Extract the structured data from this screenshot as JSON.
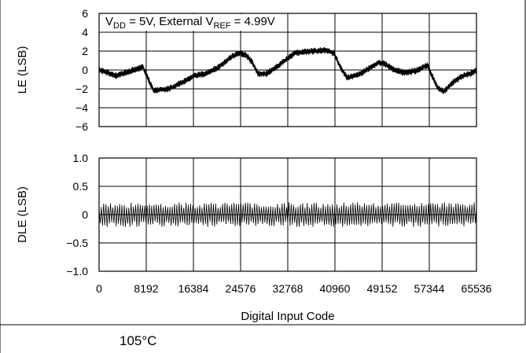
{
  "caption": "105°C",
  "chart_data": [
    {
      "type": "line",
      "title": "",
      "annotation": {
        "parts": [
          "V",
          "DD",
          " = 5V, External V",
          "REF",
          " = 4.99V"
        ],
        "subscripts": [
          1,
          3
        ]
      },
      "xlabel": "",
      "ylabel": "LE (LSB)",
      "xlim": [
        0,
        65536
      ],
      "ylim": [
        -6,
        6
      ],
      "xticks": [
        0,
        8192,
        16384,
        24576,
        32768,
        40960,
        49152,
        57344,
        65536
      ],
      "yticks": [
        -6,
        -4,
        -2,
        0,
        2,
        4,
        6
      ],
      "ytick_labels": [
        "−6",
        "−4",
        "−2",
        "0",
        "2",
        "4",
        "6"
      ],
      "grid": true,
      "series": [
        {
          "noise_amplitude": 0.35,
          "x": [
            0,
            3000,
            6000,
            7600,
            8400,
            9500,
            12000,
            14500,
            16500,
            18500,
            20500,
            22000,
            23000,
            24300,
            25500,
            26600,
            27600,
            29000,
            31000,
            32500,
            34000,
            35500,
            37500,
            39500,
            40800,
            41800,
            43000,
            45000,
            47000,
            48600,
            49500,
            51000,
            53000,
            55000,
            57000,
            58800,
            59800,
            61500,
            63200,
            64500,
            65536
          ],
          "y": [
            0,
            -0.6,
            0,
            0.3,
            -0.8,
            -2.2,
            -2.0,
            -1.3,
            -0.6,
            -0.4,
            0.2,
            0.9,
            1.4,
            1.8,
            1.6,
            0.8,
            -0.4,
            -0.4,
            0.4,
            1.1,
            1.8,
            1.9,
            2.0,
            2.1,
            1.8,
            0.4,
            -0.8,
            -0.5,
            0.2,
            0.8,
            0.7,
            0.1,
            -0.3,
            -0.1,
            0.5,
            -1.9,
            -2.3,
            -1.3,
            -0.6,
            -0.4,
            0
          ]
        }
      ]
    },
    {
      "type": "line",
      "title": "",
      "xlabel": "Digital Input Code",
      "ylabel": "DLE (LSB)",
      "xlim": [
        0,
        65536
      ],
      "ylim": [
        -1.0,
        1.0
      ],
      "xticks": [
        0,
        8192,
        16384,
        24576,
        32768,
        40960,
        49152,
        57344,
        65536
      ],
      "xtick_labels": [
        "0",
        "8192",
        "16384",
        "24576",
        "32768",
        "40960",
        "49152",
        "57344",
        "65536"
      ],
      "yticks": [
        -1.0,
        -0.5,
        0,
        0.5,
        1.0
      ],
      "ytick_labels": [
        "−1.0",
        "−0.5",
        "0",
        "0.5",
        "1.0"
      ],
      "grid": true,
      "series": [
        {
          "envelope": [
            -0.22,
            0.22
          ]
        }
      ]
    }
  ]
}
